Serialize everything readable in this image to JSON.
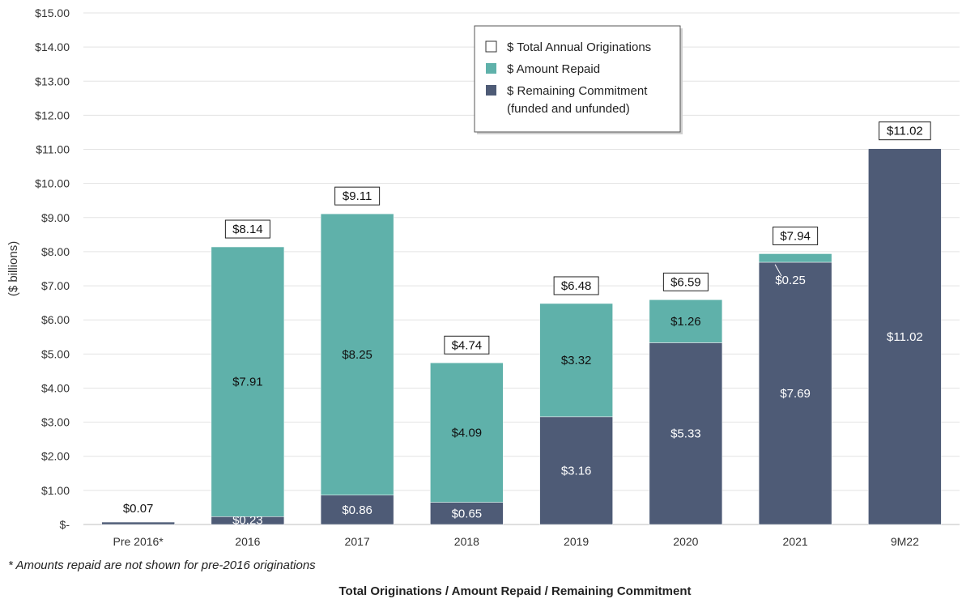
{
  "chart_data": {
    "type": "bar",
    "stacked": true,
    "categories": [
      "Pre 2016*",
      "2016",
      "2017",
      "2018",
      "2019",
      "2020",
      "2021",
      "9M22"
    ],
    "series": [
      {
        "name": "$ Remaining Commitment\n(funded and unfunded)",
        "color": "#4e5b76",
        "values": [
          0.07,
          0.23,
          0.86,
          0.65,
          3.16,
          5.33,
          7.69,
          11.02
        ],
        "labels": [
          "",
          "$0.23",
          "$0.86",
          "$0.65",
          "$3.16",
          "$5.33",
          "$7.69",
          "$11.02"
        ]
      },
      {
        "name": "$ Amount Repaid",
        "color": "#5fb1aa",
        "values": [
          0,
          7.91,
          8.25,
          4.09,
          3.32,
          1.26,
          0.25,
          0
        ],
        "labels": [
          "",
          "$7.91",
          "$8.25",
          "$4.09",
          "$3.32",
          "$1.26",
          "$0.25",
          ""
        ]
      }
    ],
    "totals": [
      0.07,
      8.14,
      9.11,
      4.74,
      6.48,
      6.59,
      7.94,
      11.02
    ],
    "total_labels": [
      "$0.07",
      "$8.14",
      "$9.11",
      "$4.74",
      "$6.48",
      "$6.59",
      "$7.94",
      "$11.02"
    ],
    "total_series_name": "$ Total Annual Originations",
    "ylabel": "($ billions)",
    "xlabel": "Total Originations / Amount Repaid / Remaining Commitment",
    "ylim": [
      0,
      15
    ],
    "yticks": [
      "$-",
      "$1.00",
      "$2.00",
      "$3.00",
      "$4.00",
      "$5.00",
      "$6.00",
      "$7.00",
      "$8.00",
      "$9.00",
      "$10.00",
      "$11.00",
      "$12.00",
      "$13.00",
      "$14.00",
      "$15.00"
    ],
    "grid": true,
    "legend_position": "top-center"
  },
  "footnote": "* Amounts repaid are not shown for pre-2016 originations"
}
